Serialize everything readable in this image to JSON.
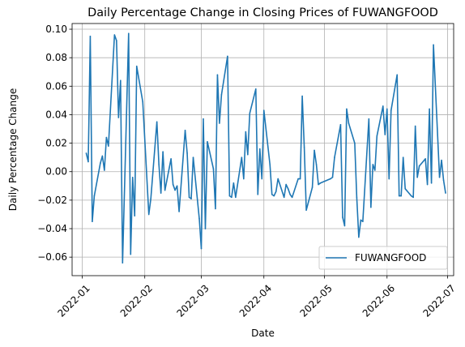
{
  "chart_data": {
    "type": "line",
    "title": "Daily Percentage Change in Closing Prices of FUWANGFOOD",
    "xlabel": "Date",
    "ylabel": "Daily Percentage Change",
    "xlim": [
      "2021-12-27",
      "2022-07-04"
    ],
    "ylim": [
      -0.073,
      0.104
    ],
    "grid": true,
    "legend_position": "lower-right",
    "x_ticks": [
      "2022-01",
      "2022-02",
      "2022-03",
      "2022-04",
      "2022-05",
      "2022-06",
      "2022-07"
    ],
    "y_ticks": [
      -0.06,
      -0.04,
      -0.02,
      0.0,
      0.02,
      0.04,
      0.06,
      0.08,
      0.1
    ],
    "y_tick_labels": [
      "−0.06",
      "−0.04",
      "−0.02",
      "0.00",
      "0.02",
      "0.04",
      "0.06",
      "0.08",
      "0.10"
    ],
    "series": [
      {
        "name": "FUWANGFOOD",
        "color": "#1f77b4",
        "x": [
          "2022-01-03",
          "2022-01-04",
          "2022-01-05",
          "2022-01-06",
          "2022-01-07",
          "2022-01-10",
          "2022-01-11",
          "2022-01-12",
          "2022-01-13",
          "2022-01-14",
          "2022-01-17",
          "2022-01-18",
          "2022-01-19",
          "2022-01-20",
          "2022-01-21",
          "2022-01-24",
          "2022-01-25",
          "2022-01-26",
          "2022-01-27",
          "2022-01-28",
          "2022-01-31",
          "2022-02-03",
          "2022-02-04",
          "2022-02-07",
          "2022-02-08",
          "2022-02-09",
          "2022-02-10",
          "2022-02-11",
          "2022-02-14",
          "2022-02-15",
          "2022-02-16",
          "2022-02-17",
          "2022-02-18",
          "2022-02-21",
          "2022-02-22",
          "2022-02-23",
          "2022-02-24",
          "2022-02-25",
          "2022-02-28",
          "2022-03-01",
          "2022-03-02",
          "2022-03-03",
          "2022-03-04",
          "2022-03-07",
          "2022-03-08",
          "2022-03-09",
          "2022-03-10",
          "2022-03-11",
          "2022-03-14",
          "2022-03-15",
          "2022-03-16",
          "2022-03-17",
          "2022-03-18",
          "2022-03-21",
          "2022-03-22",
          "2022-03-23",
          "2022-03-24",
          "2022-03-25",
          "2022-03-28",
          "2022-03-29",
          "2022-03-30",
          "2022-03-31",
          "2022-04-01",
          "2022-04-04",
          "2022-04-05",
          "2022-04-06",
          "2022-04-07",
          "2022-04-08",
          "2022-04-11",
          "2022-04-12",
          "2022-04-13",
          "2022-04-14",
          "2022-04-15",
          "2022-04-18",
          "2022-04-19",
          "2022-04-20",
          "2022-04-21",
          "2022-04-22",
          "2022-04-25",
          "2022-04-26",
          "2022-04-27",
          "2022-04-28",
          "2022-04-29",
          "2022-05-04",
          "2022-05-05",
          "2022-05-06",
          "2022-05-09",
          "2022-05-10",
          "2022-05-11",
          "2022-05-12",
          "2022-05-13",
          "2022-05-16",
          "2022-05-17",
          "2022-05-18",
          "2022-05-19",
          "2022-05-20",
          "2022-05-23",
          "2022-05-24",
          "2022-05-25",
          "2022-05-26",
          "2022-05-27",
          "2022-05-30",
          "2022-05-31",
          "2022-06-01",
          "2022-06-02",
          "2022-06-03",
          "2022-06-06",
          "2022-06-07",
          "2022-06-08",
          "2022-06-09",
          "2022-06-10",
          "2022-06-13",
          "2022-06-14",
          "2022-06-15",
          "2022-06-16",
          "2022-06-17",
          "2022-06-20",
          "2022-06-21",
          "2022-06-22",
          "2022-06-23",
          "2022-06-24",
          "2022-06-27",
          "2022-06-28",
          "2022-06-29",
          "2022-06-30"
        ],
        "values": [
          0.013,
          0.007,
          0.095,
          -0.035,
          -0.017,
          0.006,
          0.011,
          0.001,
          0.024,
          0.018,
          0.096,
          0.092,
          0.038,
          0.064,
          -0.064,
          0.097,
          -0.058,
          -0.004,
          -0.031,
          0.074,
          0.049,
          -0.03,
          -0.019,
          0.035,
          0.005,
          -0.015,
          0.014,
          -0.013,
          0.009,
          -0.009,
          -0.013,
          -0.01,
          -0.028,
          0.029,
          0.013,
          -0.018,
          -0.019,
          0.01,
          -0.033,
          -0.054,
          0.037,
          -0.04,
          0.021,
          0.002,
          -0.026,
          0.068,
          0.034,
          0.054,
          0.081,
          -0.017,
          -0.018,
          -0.008,
          -0.018,
          0.01,
          -0.005,
          0.028,
          0.012,
          0.041,
          0.058,
          -0.016,
          0.016,
          -0.005,
          0.043,
          0.005,
          -0.016,
          -0.017,
          -0.014,
          -0.005,
          -0.018,
          -0.009,
          -0.012,
          -0.016,
          -0.018,
          -0.005,
          -0.005,
          0.053,
          0.017,
          -0.027,
          -0.011,
          0.015,
          0.005,
          -0.009,
          -0.008,
          -0.005,
          -0.004,
          0.01,
          0.033,
          -0.032,
          -0.038,
          0.044,
          0.034,
          0.02,
          -0.018,
          -0.046,
          -0.034,
          -0.035,
          0.037,
          -0.025,
          0.005,
          0.001,
          0.025,
          0.046,
          0.026,
          0.044,
          -0.005,
          0.043,
          0.068,
          -0.017,
          -0.017,
          0.01,
          -0.012,
          -0.017,
          -0.018,
          0.032,
          -0.004,
          0.004,
          0.009,
          -0.009,
          0.044,
          -0.008,
          0.089,
          -0.004,
          0.008,
          -0.006,
          -0.015
        ]
      }
    ]
  }
}
